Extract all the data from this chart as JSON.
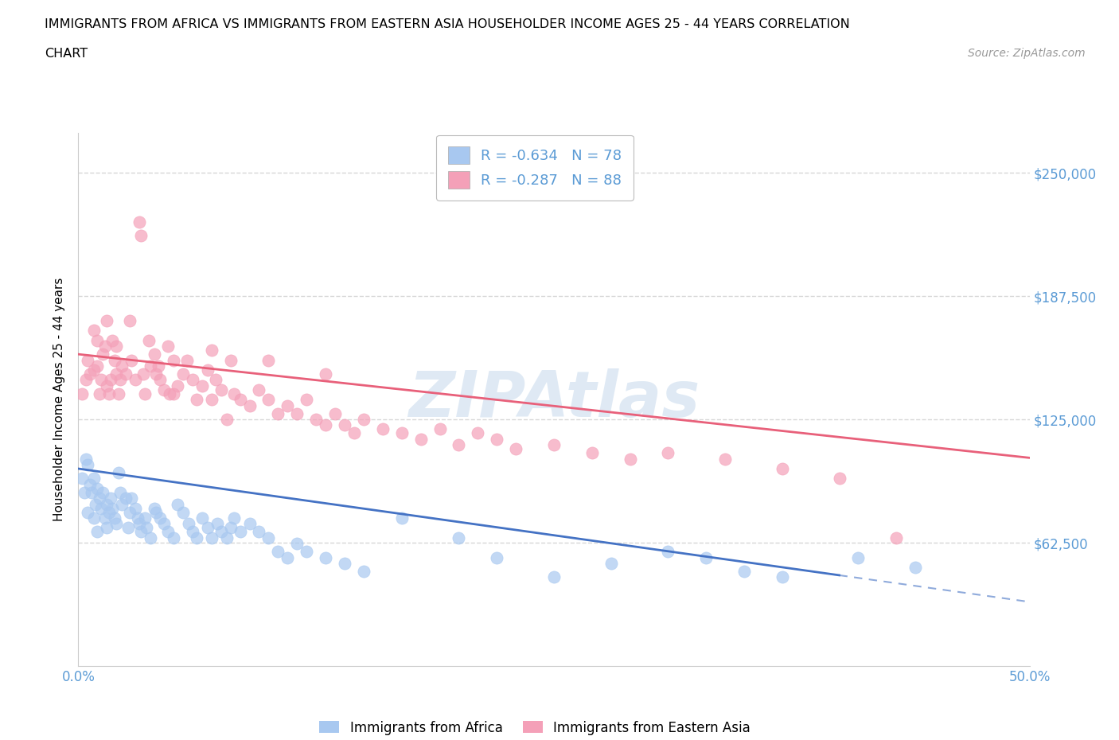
{
  "title_line1": "IMMIGRANTS FROM AFRICA VS IMMIGRANTS FROM EASTERN ASIA HOUSEHOLDER INCOME AGES 25 - 44 YEARS CORRELATION",
  "title_line2": "CHART",
  "source_text": "Source: ZipAtlas.com",
  "ylabel": "Householder Income Ages 25 - 44 years",
  "xlim": [
    0.0,
    0.5
  ],
  "ylim": [
    0,
    270000
  ],
  "yticks": [
    0,
    62500,
    125000,
    187500,
    250000
  ],
  "ytick_labels": [
    "",
    "$62,500",
    "$125,000",
    "$187,500",
    "$250,000"
  ],
  "xticks": [
    0.0,
    0.05,
    0.1,
    0.15,
    0.2,
    0.25,
    0.3,
    0.35,
    0.4,
    0.45,
    0.5
  ],
  "xtick_labels": [
    "0.0%",
    "",
    "",
    "",
    "",
    "",
    "",
    "",
    "",
    "",
    "50.0%"
  ],
  "africa_color": "#a8c8f0",
  "eastern_asia_color": "#f4a0b8",
  "africa_R": -0.634,
  "africa_N": 78,
  "eastern_asia_R": -0.287,
  "eastern_asia_N": 88,
  "watermark": "ZIPAtlas",
  "africa_line_intercept": 100000,
  "africa_line_slope": -135000,
  "eastern_asia_line_intercept": 158000,
  "eastern_asia_line_slope": -105000,
  "africa_scatter_x": [
    0.002,
    0.003,
    0.004,
    0.005,
    0.005,
    0.006,
    0.007,
    0.008,
    0.008,
    0.009,
    0.01,
    0.01,
    0.011,
    0.012,
    0.013,
    0.014,
    0.015,
    0.015,
    0.016,
    0.017,
    0.018,
    0.019,
    0.02,
    0.021,
    0.022,
    0.023,
    0.025,
    0.026,
    0.027,
    0.028,
    0.03,
    0.031,
    0.032,
    0.033,
    0.035,
    0.036,
    0.038,
    0.04,
    0.041,
    0.043,
    0.045,
    0.047,
    0.05,
    0.052,
    0.055,
    0.058,
    0.06,
    0.062,
    0.065,
    0.068,
    0.07,
    0.073,
    0.075,
    0.078,
    0.08,
    0.082,
    0.085,
    0.09,
    0.095,
    0.1,
    0.105,
    0.11,
    0.115,
    0.12,
    0.13,
    0.14,
    0.15,
    0.17,
    0.2,
    0.22,
    0.25,
    0.28,
    0.31,
    0.33,
    0.35,
    0.37,
    0.41,
    0.44
  ],
  "africa_scatter_y": [
    95000,
    88000,
    105000,
    102000,
    78000,
    92000,
    88000,
    95000,
    75000,
    82000,
    90000,
    68000,
    85000,
    80000,
    88000,
    75000,
    82000,
    70000,
    78000,
    85000,
    80000,
    75000,
    72000,
    98000,
    88000,
    82000,
    85000,
    70000,
    78000,
    85000,
    80000,
    75000,
    72000,
    68000,
    75000,
    70000,
    65000,
    80000,
    78000,
    75000,
    72000,
    68000,
    65000,
    82000,
    78000,
    72000,
    68000,
    65000,
    75000,
    70000,
    65000,
    72000,
    68000,
    65000,
    70000,
    75000,
    68000,
    72000,
    68000,
    65000,
    58000,
    55000,
    62000,
    58000,
    55000,
    52000,
    48000,
    75000,
    65000,
    55000,
    45000,
    52000,
    58000,
    55000,
    48000,
    45000,
    55000,
    50000
  ],
  "eastern_asia_scatter_x": [
    0.002,
    0.004,
    0.005,
    0.006,
    0.008,
    0.01,
    0.011,
    0.012,
    0.013,
    0.014,
    0.015,
    0.016,
    0.017,
    0.018,
    0.019,
    0.02,
    0.021,
    0.022,
    0.023,
    0.025,
    0.027,
    0.028,
    0.03,
    0.032,
    0.033,
    0.034,
    0.035,
    0.037,
    0.038,
    0.04,
    0.041,
    0.042,
    0.043,
    0.045,
    0.047,
    0.048,
    0.05,
    0.052,
    0.055,
    0.057,
    0.06,
    0.062,
    0.065,
    0.068,
    0.07,
    0.072,
    0.075,
    0.078,
    0.08,
    0.082,
    0.085,
    0.09,
    0.095,
    0.1,
    0.105,
    0.11,
    0.115,
    0.12,
    0.125,
    0.13,
    0.135,
    0.14,
    0.145,
    0.15,
    0.16,
    0.17,
    0.18,
    0.19,
    0.2,
    0.21,
    0.22,
    0.23,
    0.25,
    0.27,
    0.29,
    0.31,
    0.34,
    0.37,
    0.4,
    0.43,
    0.008,
    0.01,
    0.015,
    0.02,
    0.05,
    0.07,
    0.1,
    0.13
  ],
  "eastern_asia_scatter_y": [
    138000,
    145000,
    155000,
    148000,
    150000,
    152000,
    138000,
    145000,
    158000,
    162000,
    142000,
    138000,
    145000,
    165000,
    155000,
    148000,
    138000,
    145000,
    152000,
    148000,
    175000,
    155000,
    145000,
    225000,
    218000,
    148000,
    138000,
    165000,
    152000,
    158000,
    148000,
    152000,
    145000,
    140000,
    162000,
    138000,
    155000,
    142000,
    148000,
    155000,
    145000,
    135000,
    142000,
    150000,
    135000,
    145000,
    140000,
    125000,
    155000,
    138000,
    135000,
    132000,
    140000,
    135000,
    128000,
    132000,
    128000,
    135000,
    125000,
    122000,
    128000,
    122000,
    118000,
    125000,
    120000,
    118000,
    115000,
    120000,
    112000,
    118000,
    115000,
    110000,
    112000,
    108000,
    105000,
    108000,
    105000,
    100000,
    95000,
    65000,
    170000,
    165000,
    175000,
    162000,
    138000,
    160000,
    155000,
    148000
  ],
  "africa_line_color": "#4472c4",
  "eastern_asia_line_color": "#e8607a",
  "grid_color": "#cccccc",
  "tick_color": "#5b9bd5",
  "africa_line_solid_end": 0.4
}
